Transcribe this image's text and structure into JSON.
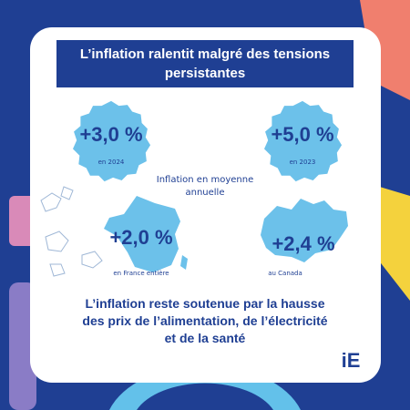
{
  "header": {
    "title": [
      "L’inflation ralentit malgré des tensions",
      "persistantes"
    ]
  },
  "stats": [
    {
      "value": "+3,0 %",
      "caption": "en 2024"
    },
    {
      "value": "+5,0 %",
      "caption": "en 2023"
    },
    {
      "value": "+2,0 %",
      "caption": "en France entière"
    },
    {
      "value": "+2,4 %",
      "caption": "au Canada"
    }
  ],
  "subtitle": [
    "Inflation en moyenne",
    "annuelle"
  ],
  "conclusion": [
    "L’inflation reste soutenue par la hausse",
    "des prix de l’alimentation, de l’électricité",
    "et de la santé"
  ],
  "logo": "iE"
}
